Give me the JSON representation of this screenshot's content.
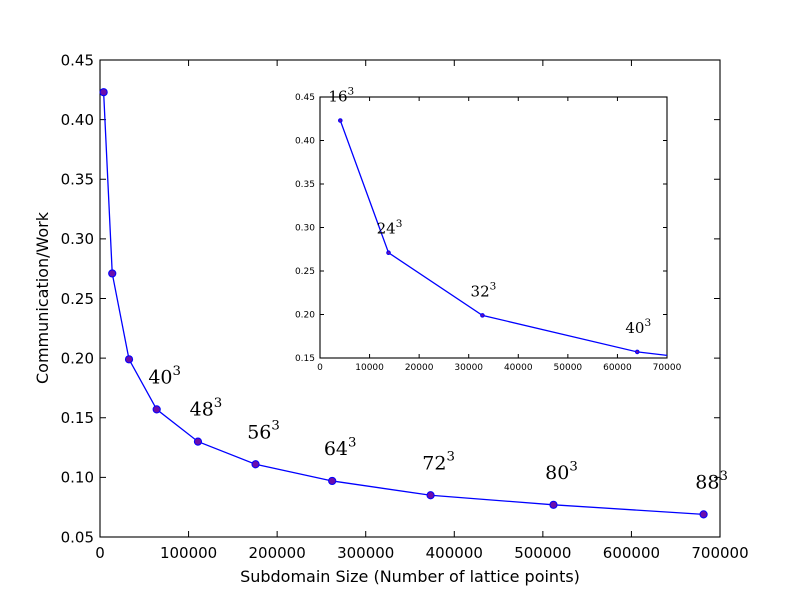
{
  "chart_data": [
    {
      "type": "line",
      "xlabel": "Subdomain Size (Number of lattice points)",
      "ylabel": "Communication/Work",
      "xlim": [
        0,
        700000
      ],
      "ylim": [
        0.05,
        0.45
      ],
      "x_ticks": [
        0,
        100000,
        200000,
        300000,
        400000,
        500000,
        600000,
        700000
      ],
      "x_tick_labels": [
        "0",
        "100000",
        "200000",
        "300000",
        "400000",
        "500000",
        "600000",
        "700000"
      ],
      "y_ticks": [
        0.05,
        0.1,
        0.15,
        0.2,
        0.25,
        0.3,
        0.35,
        0.4,
        0.45
      ],
      "y_tick_labels": [
        "0.05",
        "0.10",
        "0.15",
        "0.20",
        "0.25",
        "0.30",
        "0.35",
        "0.40",
        "0.45"
      ],
      "series": [
        {
          "x": [
            4096,
            13824,
            32768,
            64000,
            110592,
            175616,
            262144,
            373248,
            512000,
            681472
          ],
          "y": [
            0.423,
            0.271,
            0.199,
            0.157,
            0.13,
            0.111,
            0.097,
            0.085,
            0.077,
            0.069
          ],
          "color": "#0000ff",
          "marker_color": "#6a0dad"
        }
      ],
      "annotations": [
        {
          "base": "40",
          "exp": "3",
          "x": 64000,
          "y": 0.157
        },
        {
          "base": "48",
          "exp": "3",
          "x": 110592,
          "y": 0.13
        },
        {
          "base": "56",
          "exp": "3",
          "x": 175616,
          "y": 0.111
        },
        {
          "base": "64",
          "exp": "3",
          "x": 262144,
          "y": 0.097
        },
        {
          "base": "72",
          "exp": "3",
          "x": 373248,
          "y": 0.085
        },
        {
          "base": "80",
          "exp": "3",
          "x": 512000,
          "y": 0.077
        },
        {
          "base": "88",
          "exp": "3",
          "x": 681472,
          "y": 0.069
        }
      ]
    },
    {
      "type": "line",
      "xlim": [
        0,
        70000
      ],
      "ylim": [
        0.15,
        0.45
      ],
      "x_ticks": [
        0,
        10000,
        20000,
        30000,
        40000,
        50000,
        60000,
        70000
      ],
      "x_tick_labels": [
        "0",
        "10000",
        "20000",
        "30000",
        "40000",
        "50000",
        "60000",
        "70000"
      ],
      "y_ticks": [
        0.15,
        0.2,
        0.25,
        0.3,
        0.35,
        0.4,
        0.45
      ],
      "y_tick_labels": [
        "0.15",
        "0.20",
        "0.25",
        "0.30",
        "0.35",
        "0.40",
        "0.45"
      ],
      "series": [
        {
          "x": [
            4096,
            13824,
            32768,
            64000,
            70000
          ],
          "y": [
            0.423,
            0.271,
            0.199,
            0.157,
            0.153
          ],
          "color": "#0000ff",
          "marker_color": "#6a0dad"
        }
      ],
      "annotations": [
        {
          "base": "16",
          "exp": "3",
          "x": 4096,
          "y": 0.423
        },
        {
          "base": "24",
          "exp": "3",
          "x": 13824,
          "y": 0.271
        },
        {
          "base": "32",
          "exp": "3",
          "x": 32768,
          "y": 0.199
        },
        {
          "base": "40",
          "exp": "3",
          "x": 64000,
          "y": 0.157
        }
      ]
    }
  ]
}
